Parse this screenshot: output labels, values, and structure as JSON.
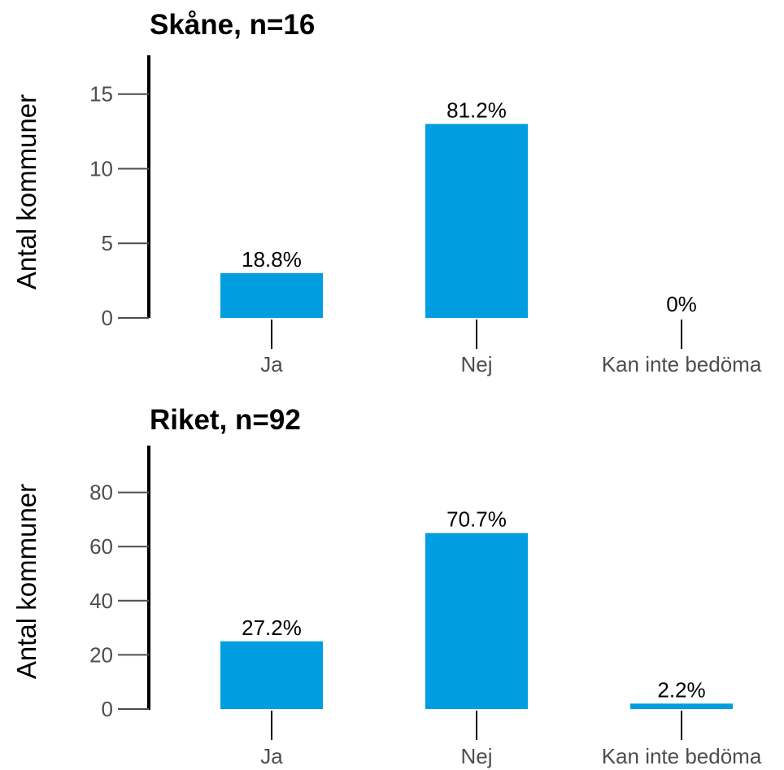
{
  "colors": {
    "bar": "#009ee0",
    "axis": "#000000",
    "tick": "#4d4d4d"
  },
  "chart_data": [
    {
      "type": "bar",
      "title": "Skåne, n=16",
      "ylabel": "Antal kommuner",
      "xlabel": "",
      "categories": [
        "Ja",
        "Nej",
        "Kan inte bedöma"
      ],
      "values": [
        3,
        13,
        0
      ],
      "labels": [
        "18.8%",
        "81.2%",
        "0%"
      ],
      "yticks": [
        0,
        5,
        10,
        15
      ],
      "ylim": [
        0,
        17.6
      ]
    },
    {
      "type": "bar",
      "title": "Riket, n=92",
      "ylabel": "Antal kommuner",
      "xlabel": "",
      "categories": [
        "Ja",
        "Nej",
        "Kan inte bedöma"
      ],
      "values": [
        25,
        65,
        2
      ],
      "labels": [
        "27.2%",
        "70.7%",
        "2.2%"
      ],
      "yticks": [
        0,
        20,
        40,
        60,
        80
      ],
      "ylim": [
        0,
        97.3
      ]
    }
  ]
}
